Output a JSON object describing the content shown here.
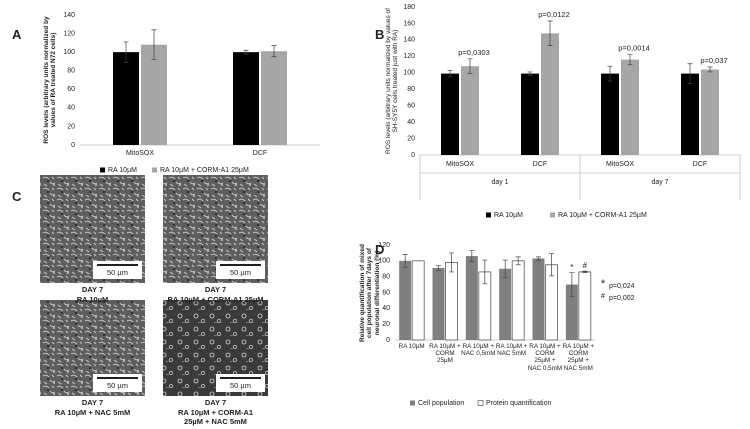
{
  "panel_labels": [
    "A",
    "B",
    "C",
    "D"
  ],
  "chart_data": [
    {
      "type": "bar",
      "ylabel": "ROS levels (arbitrary units normalized by values of RA treated N72 cells)",
      "categories": [
        "MitoSOX",
        "DCF"
      ],
      "series": [
        {
          "name": "RA 10µM",
          "color": "#000000",
          "values": [
            100,
            100
          ],
          "errors": [
            11,
            2
          ]
        },
        {
          "name": "RA 10µM + CORM-A1 25µM",
          "color": "#a6a6a6",
          "values": [
            108,
            101
          ],
          "errors": [
            16,
            6
          ]
        }
      ],
      "ylim": [
        0,
        140
      ],
      "yticks": [
        0,
        20,
        40,
        60,
        80,
        100,
        120,
        140
      ],
      "grid": false,
      "legend": "bottom"
    },
    {
      "type": "bar",
      "ylabel": "ROS levels (arbitrary units normalized by values of SH-SY5Y cells treated just with RA)",
      "categories": [
        "MitoSOX",
        "DCF",
        "MitoSOX",
        "DCF"
      ],
      "groups": [
        "day 1",
        "day 7"
      ],
      "annotations": [
        "p=0,0303",
        "p=0,0122",
        "p=0,0014",
        "p=0,037"
      ],
      "series": [
        {
          "name": "RA 10µM",
          "color": "#000000",
          "values": [
            99,
            99,
            99,
            99
          ],
          "errors": [
            4,
            2,
            9,
            12
          ]
        },
        {
          "name": "RA 10µM + CORM-A1 25µM",
          "color": "#a6a6a6",
          "values": [
            108,
            148,
            116,
            104
          ],
          "errors": [
            9,
            15,
            6,
            3
          ]
        }
      ],
      "ylim": [
        0,
        180
      ],
      "yticks": [
        0,
        20,
        40,
        60,
        80,
        100,
        120,
        140,
        160,
        180
      ],
      "grid": false,
      "legend": "bottom"
    },
    {
      "type": "bar",
      "ylabel": "Relative quantification of mixed cell population after 7days of neuronal differentiation (%)",
      "categories": [
        "RA 10µM",
        "RA 10µM + CORM 25µM",
        "RA 10µM + NAC 0,5mM",
        "RA 10µM + NAC 5mM",
        "RA 10µM + CORM 25µM + NAC 0,5mM",
        "RA 10µM + CORM 25µM + NAC 5mM"
      ],
      "series": [
        {
          "name": "Cell population",
          "color": "#7f7f7f",
          "values": [
            100,
            91,
            106,
            90,
            103,
            70
          ],
          "errors": [
            8,
            3,
            7,
            11,
            2,
            15
          ]
        },
        {
          "name": "Protein quantification",
          "color": "#ffffff",
          "values": [
            100,
            98,
            86,
            100,
            95,
            86
          ],
          "errors": [
            0,
            12,
            15,
            5,
            14,
            1
          ]
        }
      ],
      "significance": [
        {
          "symbol": "*",
          "label": "p=0,024",
          "series": 0,
          "category": 5
        },
        {
          "symbol": "#",
          "label": "p=0,002",
          "series": 1,
          "category": 5
        }
      ],
      "ylim": [
        0,
        120
      ],
      "yticks": [
        0,
        20,
        40,
        60,
        80,
        100,
        120
      ],
      "grid": false,
      "legend": "bottom"
    }
  ],
  "micrographs": [
    {
      "scale_bar": "50 µm",
      "caption": [
        "DAY 7",
        "RA 10µM"
      ]
    },
    {
      "scale_bar": "50 µm",
      "caption": [
        "DAY 7",
        "RA 10µM + CORM-A1 25µM"
      ]
    },
    {
      "scale_bar": "50 µm",
      "caption": [
        "DAY 7",
        "RA 10µM + NAC 5mM"
      ]
    },
    {
      "scale_bar": "50 µm",
      "caption": [
        "DAY 7",
        "RA 10µM + CORM-A1",
        "25µM + NAC 5mM"
      ]
    }
  ]
}
